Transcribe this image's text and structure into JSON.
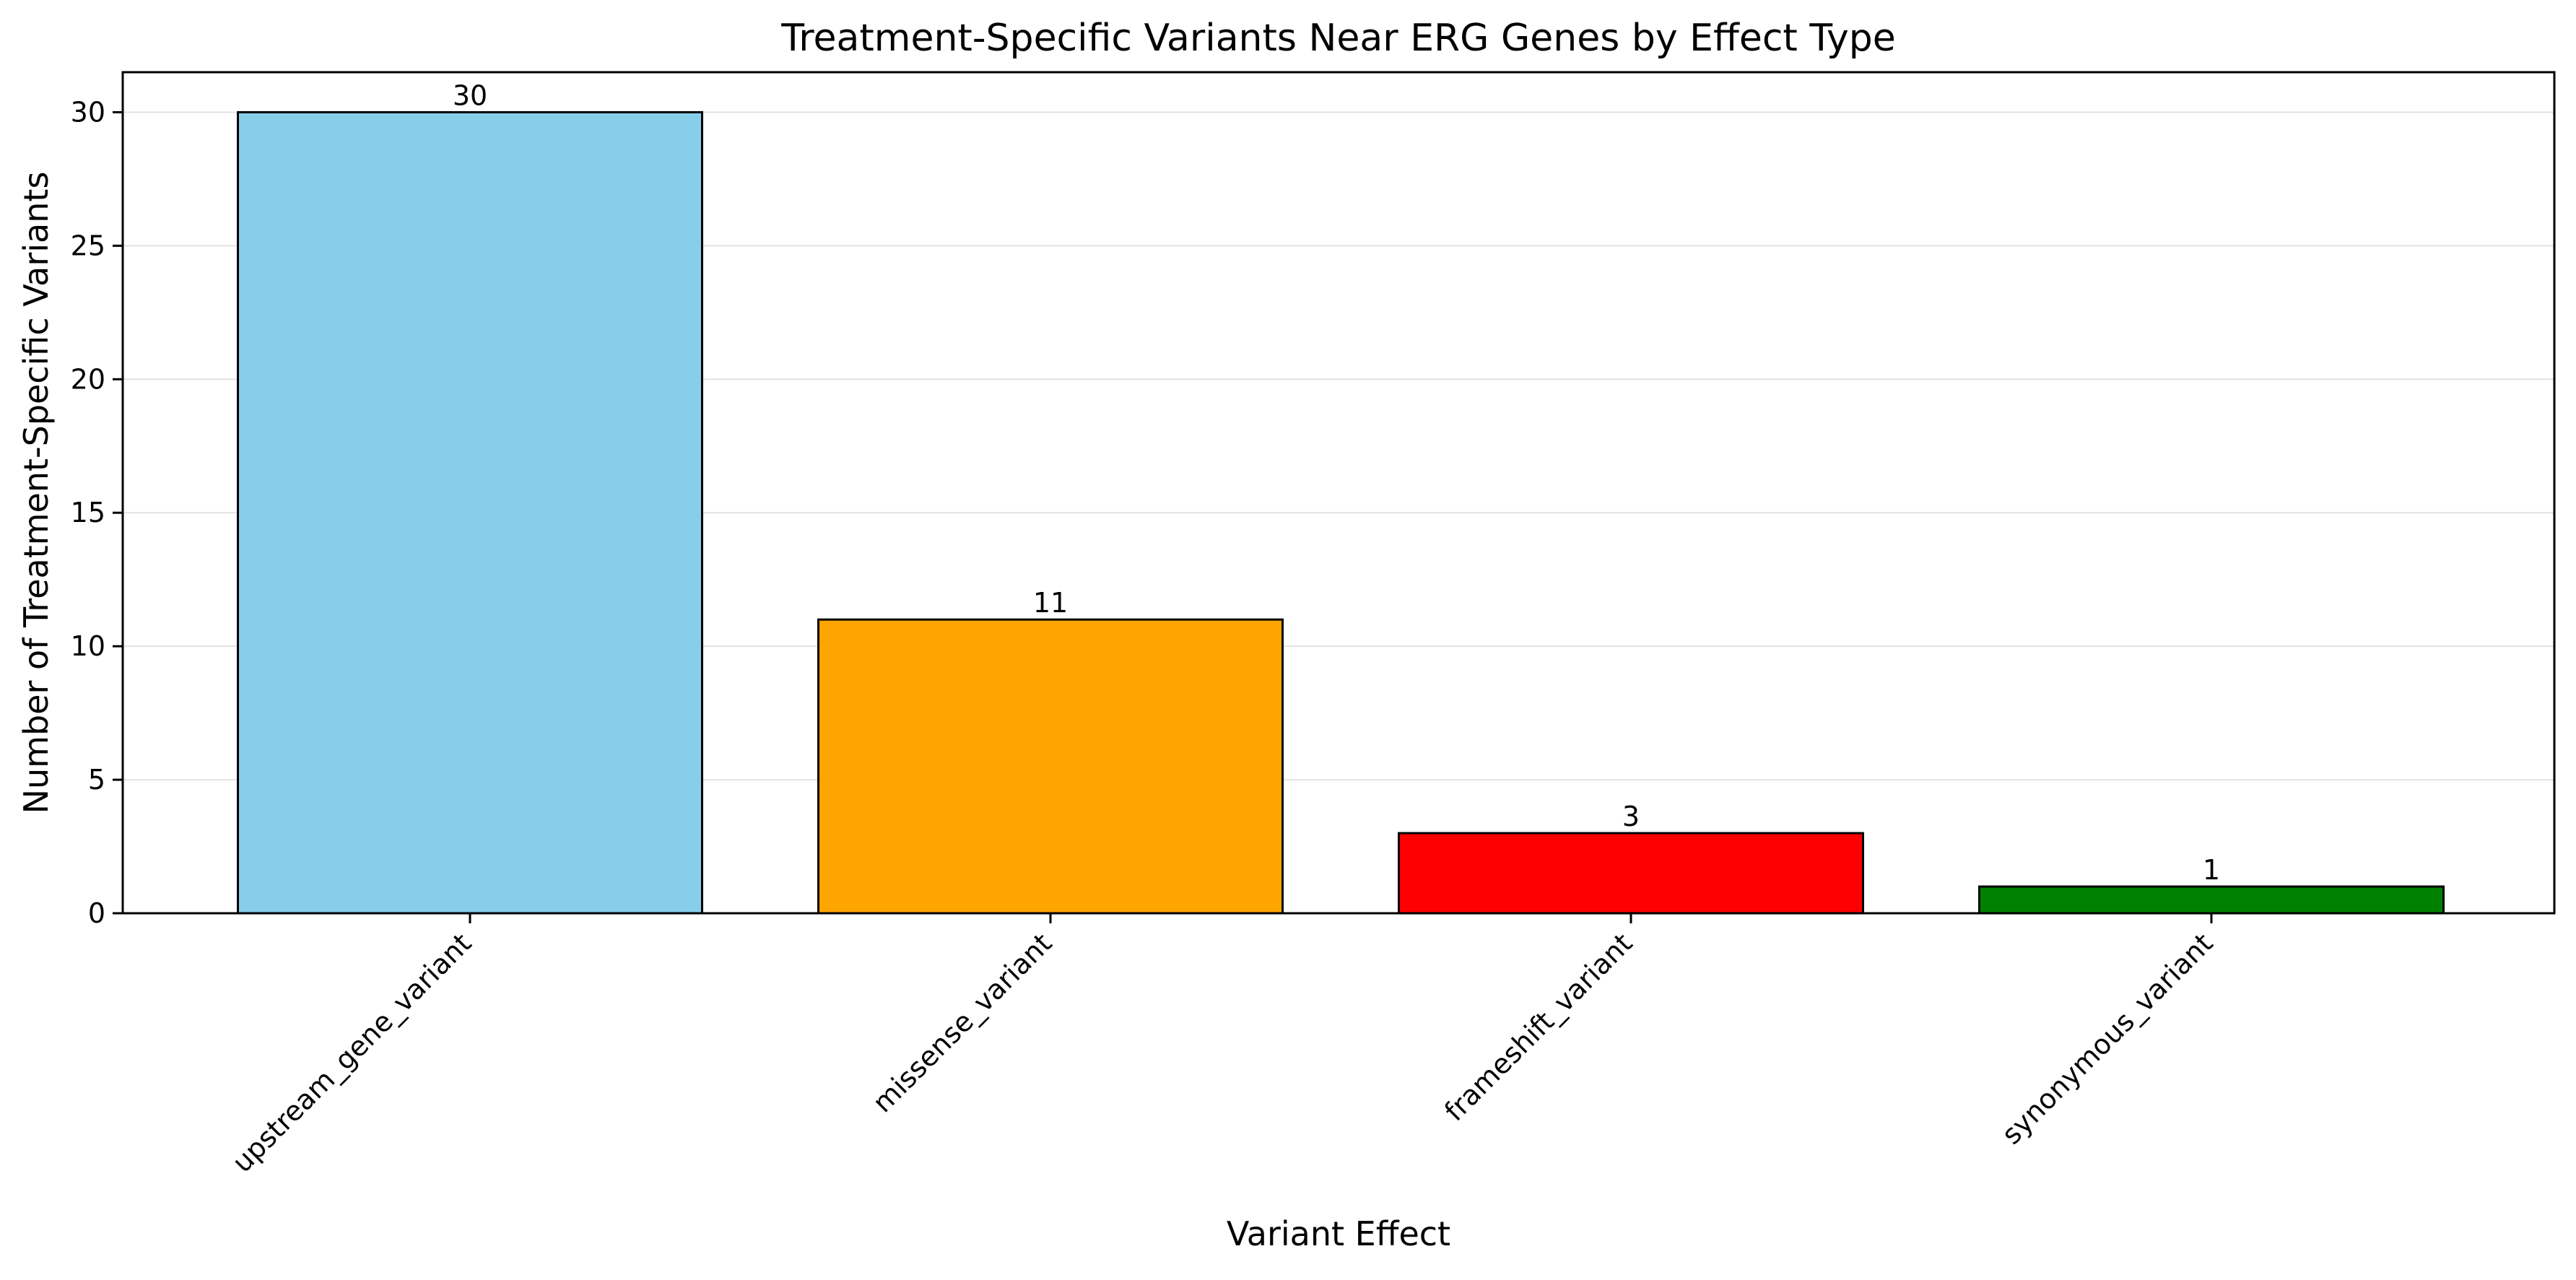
{
  "chart_data": {
    "type": "bar",
    "title": "Treatment-Specific Variants Near ERG Genes by Effect Type",
    "xlabel": "Variant Effect",
    "ylabel": "Number of Treatment-Specific Variants",
    "categories": [
      "upstream_gene_variant",
      "missense_variant",
      "frameshift_variant",
      "synonymous_variant"
    ],
    "values": [
      30,
      11,
      3,
      1
    ],
    "data_labels": [
      "30",
      "11",
      "3",
      "1"
    ],
    "colors": [
      "#87CEEB",
      "#FFA500",
      "#FF0000",
      "#008000"
    ],
    "edge_color": "#000000",
    "ylim": [
      0,
      31.5
    ],
    "yticks": [
      0,
      5,
      10,
      15,
      20,
      25,
      30
    ],
    "ytick_labels": [
      "0",
      "5",
      "10",
      "15",
      "20",
      "25",
      "30"
    ],
    "grid": "y-axis, light gray",
    "legend": "none"
  }
}
